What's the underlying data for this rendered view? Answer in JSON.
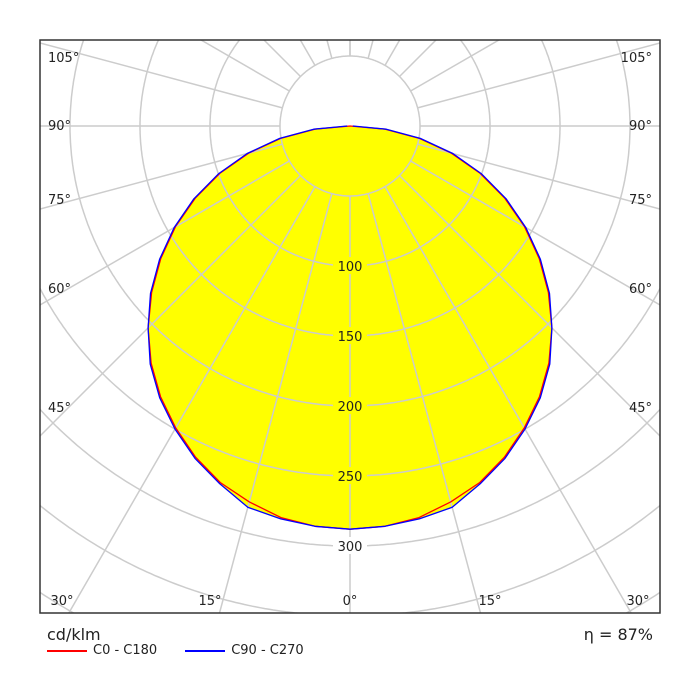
{
  "chart_data": {
    "type": "polar",
    "unit_label": "cd/klm",
    "efficiency_label": "η = 87%",
    "radial_ticks": [
      100,
      150,
      200,
      250,
      300
    ],
    "radial_grid_step": 50,
    "angle_ticks_left": [
      "105°",
      "90°",
      "75°",
      "60°",
      "45°"
    ],
    "angle_ticks_right": [
      "105°",
      "90°",
      "75°",
      "60°",
      "45°"
    ],
    "angle_ticks_bottom": [
      "30°",
      "15°",
      "0°",
      "15°",
      "30°"
    ],
    "angle_grid_step_deg": 15,
    "fill_color": "#ffff00",
    "grid": true,
    "legend_position": "bottom-left",
    "angles_deg": [
      0,
      5,
      10,
      15,
      20,
      25,
      30,
      35,
      40,
      45,
      50,
      55,
      60,
      65,
      70,
      75,
      80,
      85,
      90
    ],
    "series": [
      {
        "name": "C0 - C180",
        "color": "#ff0000",
        "values": [
          288,
          287,
          284,
          278,
          271,
          261,
          249,
          236,
          221,
          204,
          185,
          165,
          144,
          122,
          99,
          75,
          50,
          25,
          0
        ]
      },
      {
        "name": "C90 - C270",
        "color": "#0000ff",
        "values": [
          288,
          287,
          285,
          282,
          272,
          262,
          250,
          237,
          222,
          204,
          186,
          166,
          145,
          123,
          100,
          76,
          51,
          26,
          2
        ]
      }
    ]
  }
}
